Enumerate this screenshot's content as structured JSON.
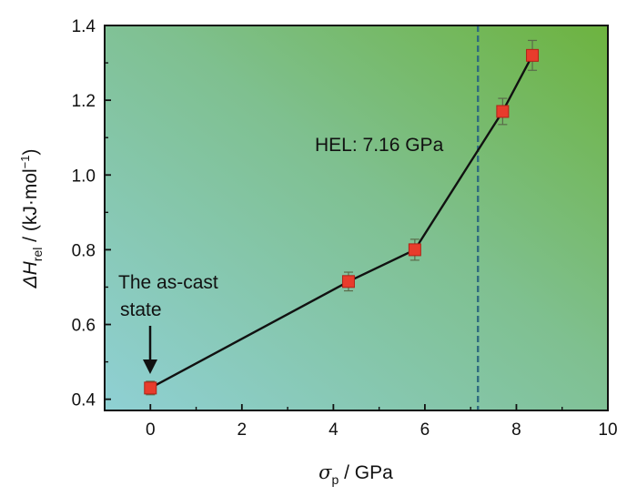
{
  "chart_data": {
    "type": "line",
    "title": "",
    "xlabel": {
      "symbol": "σ",
      "sub": "p",
      "unit": " / GPa"
    },
    "ylabel": {
      "symbol": "ΔH",
      "sub": "rel",
      "unit_pre": " / (kJ·mol",
      "unit_sup": "−1",
      "unit_post": ")"
    },
    "xlim": [
      -1,
      10
    ],
    "ylim": [
      0.37,
      1.4
    ],
    "xticks": [
      "0",
      "2",
      "4",
      "6",
      "8",
      "10"
    ],
    "yticks": [
      "0.4",
      "0.6",
      "0.8",
      "1.0",
      "1.2",
      "1.4"
    ],
    "grid": false,
    "series": [
      {
        "x": [
          0,
          4.33,
          5.78,
          7.7,
          8.35
        ],
        "y": [
          0.43,
          0.715,
          0.8,
          1.17,
          1.32
        ],
        "err": [
          0.018,
          0.025,
          0.028,
          0.035,
          0.04
        ],
        "marker": "square",
        "marker_color": "#e83c2c",
        "line_color": "#111111"
      }
    ],
    "reference_line": {
      "x": 7.16,
      "style": "dashed",
      "color": "#2f6b80"
    },
    "annotations": {
      "hel": "HEL: 7.16 GPa",
      "as_cast_line1": "The as-cast",
      "as_cast_line2": "state"
    },
    "background_gradient": {
      "from": "#8fd0d4",
      "to": "#6db33f"
    }
  }
}
